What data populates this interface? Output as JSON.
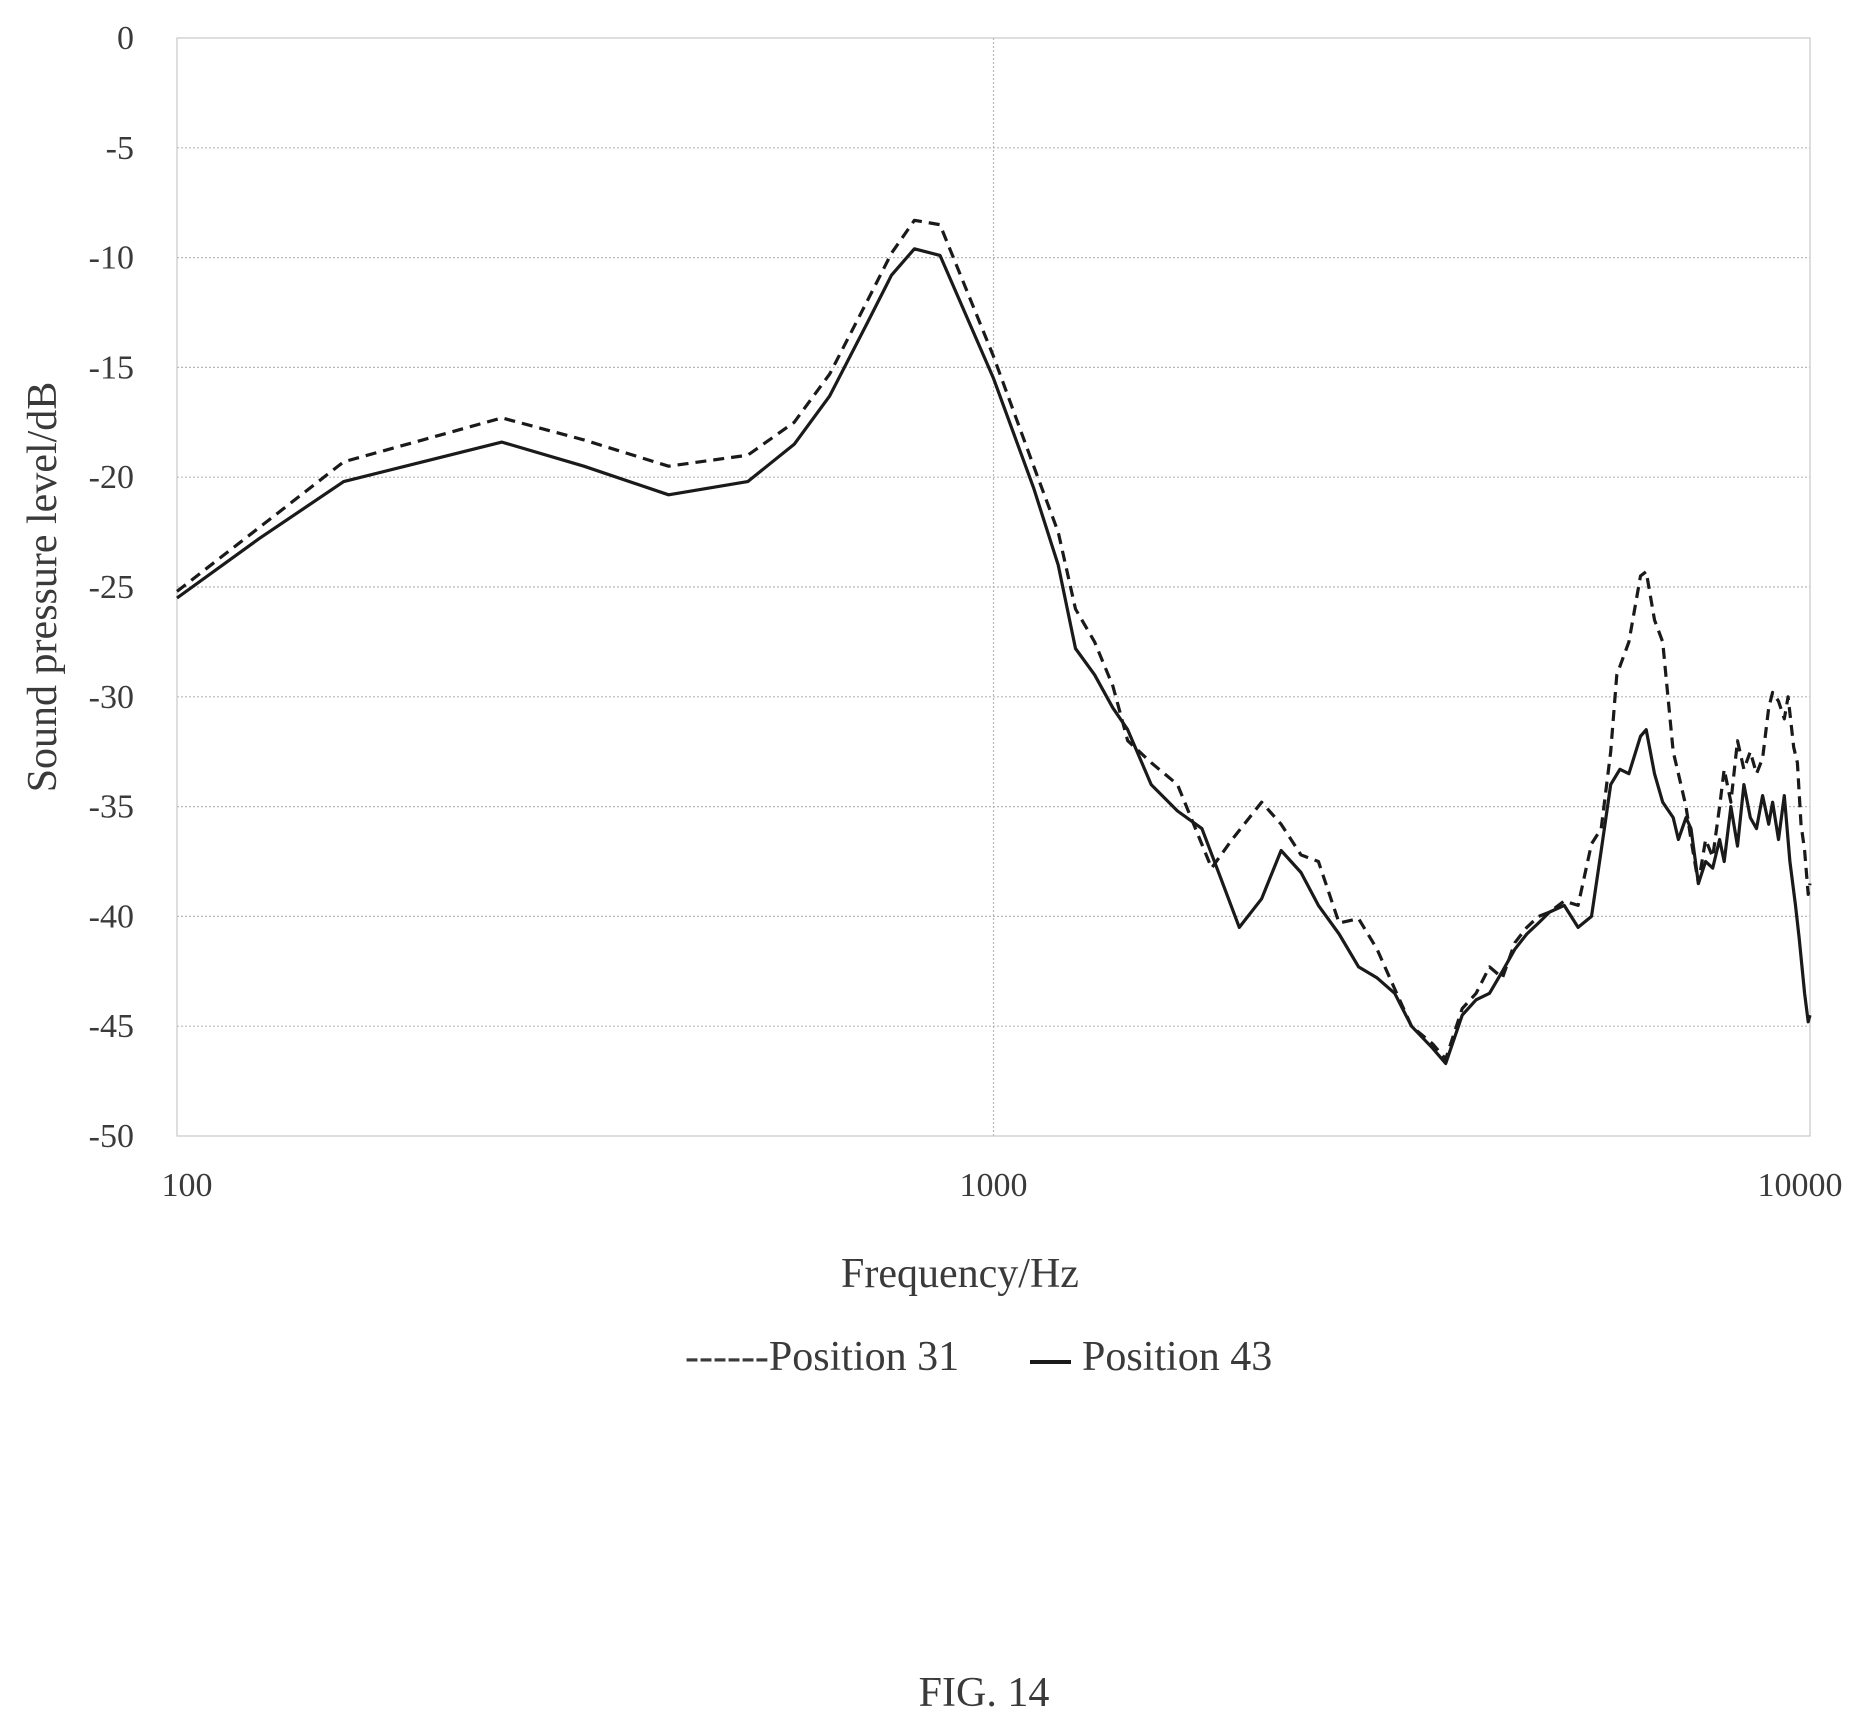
{
  "figure_label": "FIG. 14",
  "chart_data": {
    "type": "line",
    "xlabel": "Frequency/Hz",
    "ylabel": "Sound pressure level/dB",
    "xscale": "log",
    "xlim": [
      100,
      10000
    ],
    "ylim": [
      -50,
      0
    ],
    "grid": true,
    "legend_position": "bottom",
    "x_tick_labels": [
      "100",
      "1000",
      "10000"
    ],
    "y_tick_labels": [
      "0",
      "-5",
      "-10",
      "-15",
      "-20",
      "-25",
      "-30",
      "-35",
      "-40",
      "-45",
      "-50"
    ],
    "series": [
      {
        "name": "Position 31",
        "legend_label": "------Position 31",
        "style": "dashed",
        "color": "#1a1a1a",
        "points": [
          [
            100,
            -25.2
          ],
          [
            126,
            -22.3
          ],
          [
            160,
            -19.3
          ],
          [
            200,
            -18.3
          ],
          [
            250,
            -17.3
          ],
          [
            315,
            -18.3
          ],
          [
            400,
            -19.5
          ],
          [
            500,
            -19.0
          ],
          [
            570,
            -17.5
          ],
          [
            630,
            -15.3
          ],
          [
            700,
            -12.0
          ],
          [
            750,
            -9.8
          ],
          [
            800,
            -8.3
          ],
          [
            860,
            -8.5
          ],
          [
            1000,
            -14.5
          ],
          [
            1120,
            -19.5
          ],
          [
            1200,
            -22.5
          ],
          [
            1260,
            -26.0
          ],
          [
            1330,
            -27.5
          ],
          [
            1400,
            -29.5
          ],
          [
            1460,
            -32.0
          ],
          [
            1560,
            -33.0
          ],
          [
            1680,
            -34.0
          ],
          [
            1850,
            -37.8
          ],
          [
            1960,
            -36.5
          ],
          [
            2130,
            -34.8
          ],
          [
            2250,
            -35.8
          ],
          [
            2380,
            -37.2
          ],
          [
            2500,
            -37.5
          ],
          [
            2650,
            -40.3
          ],
          [
            2800,
            -40.1
          ],
          [
            2950,
            -41.5
          ],
          [
            3100,
            -43.3
          ],
          [
            3250,
            -45.0
          ],
          [
            3450,
            -45.8
          ],
          [
            3580,
            -46.5
          ],
          [
            3750,
            -44.2
          ],
          [
            3900,
            -43.5
          ],
          [
            4050,
            -42.3
          ],
          [
            4200,
            -42.8
          ],
          [
            4350,
            -41.2
          ],
          [
            4500,
            -40.5
          ],
          [
            4650,
            -40.0
          ],
          [
            4800,
            -39.8
          ],
          [
            5000,
            -39.3
          ],
          [
            5200,
            -39.5
          ],
          [
            5400,
            -36.7
          ],
          [
            5550,
            -36.0
          ],
          [
            5700,
            -32.5
          ],
          [
            5800,
            -29.0
          ],
          [
            6000,
            -27.5
          ],
          [
            6200,
            -24.5
          ],
          [
            6300,
            -24.3
          ],
          [
            6450,
            -26.5
          ],
          [
            6600,
            -27.5
          ],
          [
            6800,
            -32.5
          ],
          [
            6900,
            -33.5
          ],
          [
            7050,
            -35.0
          ],
          [
            7150,
            -36.5
          ],
          [
            7300,
            -38.5
          ],
          [
            7450,
            -36.5
          ],
          [
            7600,
            -37.3
          ],
          [
            7750,
            -35.0
          ],
          [
            7850,
            -33.3
          ],
          [
            8000,
            -34.8
          ],
          [
            8150,
            -32.0
          ],
          [
            8300,
            -33.3
          ],
          [
            8450,
            -32.5
          ],
          [
            8600,
            -33.5
          ],
          [
            8750,
            -32.8
          ],
          [
            8900,
            -30.5
          ],
          [
            9000,
            -29.8
          ],
          [
            9150,
            -30.2
          ],
          [
            9300,
            -31.0
          ],
          [
            9400,
            -30.0
          ],
          [
            9550,
            -32.3
          ],
          [
            9650,
            -33.0
          ],
          [
            9750,
            -35.8
          ],
          [
            9850,
            -37.0
          ],
          [
            9950,
            -39.0
          ],
          [
            10000,
            -38.5
          ]
        ]
      },
      {
        "name": "Position 43",
        "legend_label": "Position 43",
        "style": "solid",
        "color": "#1a1a1a",
        "points": [
          [
            100,
            -25.5
          ],
          [
            126,
            -22.8
          ],
          [
            160,
            -20.2
          ],
          [
            200,
            -19.3
          ],
          [
            250,
            -18.4
          ],
          [
            315,
            -19.5
          ],
          [
            400,
            -20.8
          ],
          [
            500,
            -20.2
          ],
          [
            570,
            -18.5
          ],
          [
            630,
            -16.3
          ],
          [
            700,
            -13.0
          ],
          [
            750,
            -10.8
          ],
          [
            800,
            -9.6
          ],
          [
            860,
            -9.9
          ],
          [
            1000,
            -15.5
          ],
          [
            1120,
            -20.5
          ],
          [
            1200,
            -24.0
          ],
          [
            1260,
            -27.8
          ],
          [
            1330,
            -29.0
          ],
          [
            1400,
            -30.5
          ],
          [
            1460,
            -31.5
          ],
          [
            1560,
            -34.0
          ],
          [
            1680,
            -35.2
          ],
          [
            1800,
            -36.0
          ],
          [
            1900,
            -38.3
          ],
          [
            2000,
            -40.5
          ],
          [
            2130,
            -39.2
          ],
          [
            2250,
            -37.0
          ],
          [
            2380,
            -38.0
          ],
          [
            2500,
            -39.5
          ],
          [
            2650,
            -40.8
          ],
          [
            2800,
            -42.3
          ],
          [
            2950,
            -42.8
          ],
          [
            3100,
            -43.5
          ],
          [
            3250,
            -45.0
          ],
          [
            3450,
            -46.0
          ],
          [
            3580,
            -46.7
          ],
          [
            3750,
            -44.5
          ],
          [
            3900,
            -43.8
          ],
          [
            4050,
            -43.5
          ],
          [
            4200,
            -42.5
          ],
          [
            4350,
            -41.5
          ],
          [
            4500,
            -40.8
          ],
          [
            4650,
            -40.3
          ],
          [
            4800,
            -39.8
          ],
          [
            5000,
            -39.5
          ],
          [
            5200,
            -40.5
          ],
          [
            5400,
            -40.0
          ],
          [
            5550,
            -37.0
          ],
          [
            5700,
            -34.0
          ],
          [
            5850,
            -33.3
          ],
          [
            6000,
            -33.5
          ],
          [
            6200,
            -31.8
          ],
          [
            6300,
            -31.5
          ],
          [
            6450,
            -33.5
          ],
          [
            6600,
            -34.8
          ],
          [
            6800,
            -35.5
          ],
          [
            6900,
            -36.5
          ],
          [
            7050,
            -35.5
          ],
          [
            7150,
            -36.0
          ],
          [
            7300,
            -38.5
          ],
          [
            7450,
            -37.5
          ],
          [
            7600,
            -37.8
          ],
          [
            7750,
            -36.5
          ],
          [
            7850,
            -37.5
          ],
          [
            8000,
            -35.0
          ],
          [
            8150,
            -36.8
          ],
          [
            8300,
            -34.0
          ],
          [
            8450,
            -35.5
          ],
          [
            8600,
            -36.0
          ],
          [
            8750,
            -34.5
          ],
          [
            8900,
            -35.8
          ],
          [
            9000,
            -34.8
          ],
          [
            9150,
            -36.5
          ],
          [
            9300,
            -34.5
          ],
          [
            9450,
            -37.5
          ],
          [
            9600,
            -39.5
          ],
          [
            9700,
            -41.0
          ],
          [
            9850,
            -43.5
          ],
          [
            9950,
            -44.8
          ],
          [
            10000,
            -44.5
          ]
        ]
      }
    ]
  }
}
